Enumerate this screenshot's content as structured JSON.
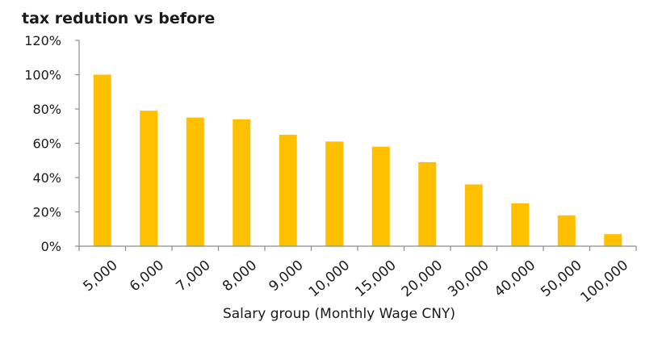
{
  "chart_data": {
    "type": "bar",
    "title": "tax redution vs before",
    "xlabel": "Salary group (Monthly Wage CNY)",
    "ylabel": "",
    "categories": [
      "5,000",
      "6,000",
      "7,000",
      "8,000",
      "9,000",
      "10,000",
      "15,000",
      "20,000",
      "30,000",
      "40,000",
      "50,000",
      "100,000"
    ],
    "values": [
      100,
      79,
      75,
      74,
      65,
      61,
      58,
      49,
      36,
      25,
      18,
      7
    ],
    "value_unit": "%",
    "ylim": [
      0,
      120
    ],
    "yticks": [
      "0%",
      "20%",
      "40%",
      "60%",
      "80%",
      "100%",
      "120%"
    ],
    "grid": false,
    "legend": "none",
    "bar_color": "#FFC000"
  }
}
